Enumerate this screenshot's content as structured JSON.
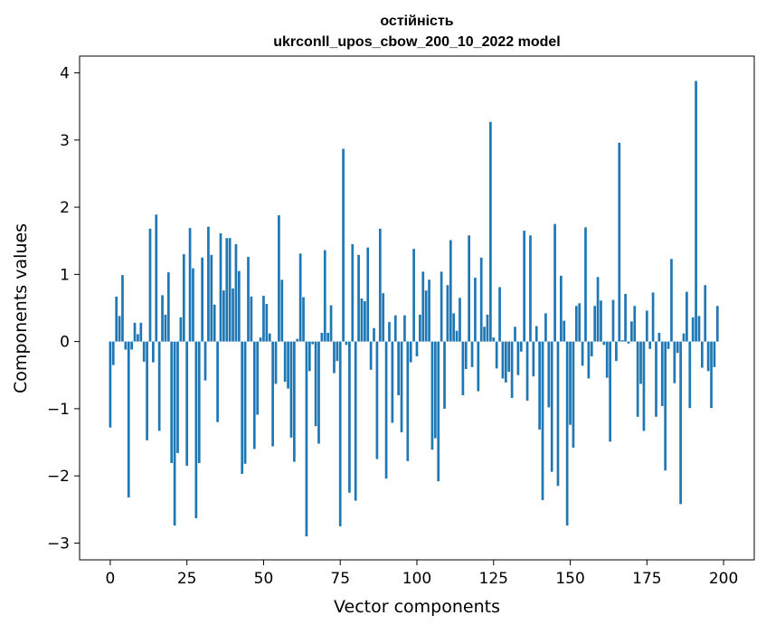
{
  "chart_data": {
    "type": "bar",
    "title_line1": "остійність",
    "title_line2": "ukrconll_upos_cbow_200_10_2022 model",
    "xlabel": "Vector components",
    "ylabel": "Components values",
    "xlim": [
      -10,
      210
    ],
    "ylim": [
      -3.25,
      4.25
    ],
    "xticks": [
      0,
      25,
      50,
      75,
      100,
      125,
      150,
      175,
      200
    ],
    "yticks": [
      -3,
      -2,
      -1,
      0,
      1,
      2,
      3,
      4
    ],
    "xtick_labels": [
      "0",
      "25",
      "50",
      "75",
      "100",
      "125",
      "150",
      "175",
      "200"
    ],
    "ytick_labels": [
      "−3",
      "−2",
      "−1",
      "0",
      "1",
      "2",
      "3",
      "4"
    ],
    "bar_color": "#1f77b4",
    "grid": false,
    "values": [
      -1.28,
      -0.35,
      0.67,
      0.38,
      0.99,
      -0.12,
      -2.32,
      -0.12,
      0.28,
      0.11,
      0.28,
      -0.3,
      -1.47,
      1.68,
      -0.31,
      1.89,
      -1.33,
      0.69,
      0.4,
      1.03,
      -1.81,
      -2.74,
      -1.66,
      0.36,
      1.3,
      -1.85,
      1.69,
      1.09,
      -2.63,
      -1.81,
      1.25,
      -0.58,
      1.71,
      1.29,
      0.55,
      -1.2,
      1.61,
      0.76,
      1.54,
      1.54,
      0.79,
      1.45,
      1.05,
      -1.97,
      -1.82,
      1.26,
      0.67,
      -1.6,
      -1.09,
      0.06,
      0.68,
      0.56,
      0.12,
      -1.56,
      -0.63,
      1.88,
      0.92,
      -0.6,
      -0.7,
      -1.43,
      -1.79,
      0.04,
      1.31,
      0.66,
      -2.9,
      -0.44,
      -0.04,
      -1.26,
      -1.52,
      0.13,
      1.36,
      0.13,
      0.54,
      -0.47,
      -0.29,
      -2.75,
      2.87,
      -0.05,
      -2.25,
      1.45,
      -2.37,
      1.29,
      0.64,
      0.6,
      1.4,
      -0.42,
      0.2,
      -1.75,
      1.68,
      0.72,
      -2.04,
      0.29,
      -1.21,
      0.39,
      -0.8,
      -1.35,
      0.39,
      -1.78,
      -0.31,
      1.38,
      -0.22,
      0.4,
      1.04,
      0.76,
      0.92,
      -1.61,
      -1.44,
      -2.08,
      1.04,
      -1.0,
      0.84,
      1.51,
      0.42,
      0.16,
      0.65,
      -0.8,
      -0.41,
      1.58,
      -0.38,
      0.95,
      -0.74,
      1.25,
      0.22,
      0.4,
      3.27,
      0.06,
      -0.4,
      0.81,
      -0.55,
      -0.61,
      -0.45,
      -0.84,
      0.22,
      -0.5,
      -0.15,
      1.65,
      -0.88,
      1.58,
      -0.52,
      0.23,
      -1.31,
      -2.36,
      0.42,
      -0.98,
      -1.94,
      1.75,
      -2.15,
      0.98,
      0.31,
      -2.74,
      -1.24,
      -1.58,
      0.53,
      0.57,
      -0.36,
      1.7,
      -0.55,
      -0.22,
      0.53,
      0.96,
      0.61,
      -0.05,
      -0.54,
      -1.49,
      0.62,
      -0.29,
      2.96,
      0.02,
      0.71,
      -0.03,
      0.3,
      0.53,
      -1.12,
      -0.63,
      -1.33,
      0.46,
      -0.11,
      0.73,
      -1.12,
      0.13,
      -0.96,
      -1.92,
      -0.11,
      1.23,
      -0.62,
      -0.17,
      -2.42,
      0.12,
      0.74,
      -0.99,
      0.36,
      3.88,
      0.38,
      -0.39,
      0.84,
      -0.44,
      -0.99,
      -0.38,
      0.53
    ]
  }
}
